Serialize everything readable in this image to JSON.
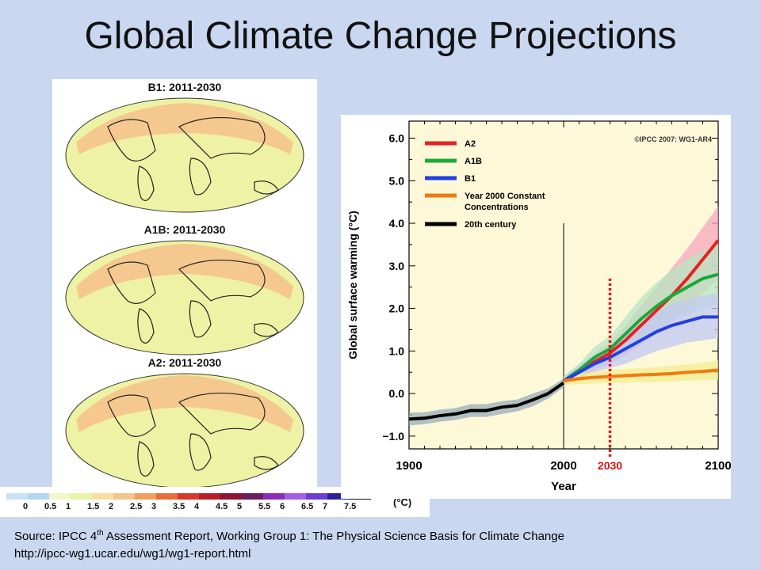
{
  "slide": {
    "title": "Global Climate Change Projections",
    "source_prefix": "Source: IPCC 4",
    "source_sup": "th",
    "source_rest": " Assessment Report, Working Group 1: The Physical Science Basis for Climate Change",
    "source_url": "http://ipcc-wg1.ucar.edu/wg1/wg1-report.html"
  },
  "maps": [
    {
      "label": "B1: 2011-2030"
    },
    {
      "label": "A1B: 2011-2030"
    },
    {
      "label": "A2: 2011-2030"
    }
  ],
  "colorbar": {
    "ticks": [
      "0",
      "0.5",
      "1",
      "1.5",
      "2",
      "2.5",
      "3",
      "3.5",
      "4",
      "4.5",
      "5",
      "5.5",
      "6",
      "6.5",
      "7",
      "7.5"
    ],
    "unit": "(°C)",
    "colors": [
      "#c9e2f5",
      "#b2d6f0",
      "#f3f6c8",
      "#e8f3a8",
      "#f6dfa0",
      "#f5c48a",
      "#f09e62",
      "#e56e3a",
      "#d8392a",
      "#b81e2a",
      "#8f1530",
      "#6a1e5e",
      "#8b2cb8",
      "#a25fe0",
      "#6a3fd6",
      "#2a20a0",
      "#101010"
    ]
  },
  "chart_data": {
    "type": "line",
    "xlabel": "Year",
    "ylabel": "Global surface warming (°C)",
    "xlim": [
      1900,
      2100
    ],
    "ylim": [
      -1.3,
      6.4
    ],
    "xticks": [
      "1900",
      "2000",
      "2100"
    ],
    "yticks": [
      "6.0",
      "5.0",
      "4.0",
      "3.0",
      "2.0",
      "1.0",
      "0.0",
      "−1.0"
    ],
    "credit": "©IPCC 2007: WG1-AR4",
    "legend_position": "top-left",
    "vertical_marker": {
      "x": 2000
    },
    "highlight": {
      "x": 2030,
      "label": "2030",
      "color": "#e01010"
    },
    "series": [
      {
        "name": "A2",
        "color": "#e82020",
        "band": "#f6a7bd",
        "x": [
          2000,
          2010,
          2020,
          2030,
          2040,
          2050,
          2060,
          2070,
          2080,
          2090,
          2100
        ],
        "y": [
          0.3,
          0.5,
          0.75,
          0.95,
          1.25,
          1.6,
          1.95,
          2.3,
          2.7,
          3.15,
          3.6
        ],
        "band_low": [
          0.2,
          0.35,
          0.55,
          0.7,
          0.9,
          1.15,
          1.4,
          1.7,
          2.0,
          2.35,
          2.7
        ],
        "band_high": [
          0.4,
          0.65,
          0.95,
          1.2,
          1.6,
          2.05,
          2.5,
          2.95,
          3.4,
          3.9,
          4.4
        ]
      },
      {
        "name": "A1B",
        "color": "#1aa83a",
        "band": "#b5e6c0",
        "x": [
          2000,
          2010,
          2020,
          2030,
          2040,
          2050,
          2060,
          2070,
          2080,
          2090,
          2100
        ],
        "y": [
          0.3,
          0.55,
          0.85,
          1.05,
          1.4,
          1.75,
          2.05,
          2.3,
          2.5,
          2.7,
          2.8
        ],
        "band_low": [
          0.2,
          0.4,
          0.6,
          0.75,
          1.0,
          1.25,
          1.5,
          1.7,
          1.85,
          2.0,
          2.1
        ],
        "band_high": [
          0.4,
          0.7,
          1.1,
          1.35,
          1.8,
          2.25,
          2.6,
          2.9,
          3.15,
          3.35,
          3.5
        ]
      },
      {
        "name": "B1",
        "color": "#2040e0",
        "band": "#c2c8f4",
        "x": [
          2000,
          2010,
          2020,
          2030,
          2040,
          2050,
          2060,
          2070,
          2080,
          2090,
          2100
        ],
        "y": [
          0.3,
          0.5,
          0.7,
          0.85,
          1.05,
          1.25,
          1.45,
          1.6,
          1.7,
          1.8,
          1.8
        ],
        "band_low": [
          0.2,
          0.35,
          0.5,
          0.6,
          0.7,
          0.85,
          1.0,
          1.1,
          1.2,
          1.25,
          1.3
        ],
        "band_high": [
          0.4,
          0.65,
          0.9,
          1.1,
          1.4,
          1.65,
          1.9,
          2.1,
          2.2,
          2.3,
          2.35
        ]
      },
      {
        "name": "Year 2000 Constant Concentrations",
        "color": "#f07a10",
        "band": "#f4ec90",
        "x": [
          2000,
          2010,
          2020,
          2030,
          2040,
          2050,
          2060,
          2070,
          2080,
          2090,
          2100
        ],
        "y": [
          0.3,
          0.35,
          0.38,
          0.4,
          0.42,
          0.44,
          0.45,
          0.47,
          0.5,
          0.52,
          0.55
        ],
        "band_low": [
          0.2,
          0.22,
          0.24,
          0.25,
          0.26,
          0.27,
          0.27,
          0.28,
          0.3,
          0.31,
          0.32
        ],
        "band_high": [
          0.4,
          0.48,
          0.52,
          0.55,
          0.58,
          0.6,
          0.62,
          0.65,
          0.68,
          0.72,
          0.78
        ]
      },
      {
        "name": "20th century",
        "color": "#000000",
        "band": "#9aaebb",
        "x": [
          1900,
          1910,
          1920,
          1930,
          1940,
          1950,
          1960,
          1970,
          1980,
          1990,
          2000
        ],
        "y": [
          -0.6,
          -0.58,
          -0.52,
          -0.48,
          -0.4,
          -0.4,
          -0.32,
          -0.28,
          -0.15,
          0.0,
          0.25
        ],
        "band_low": [
          -0.75,
          -0.72,
          -0.66,
          -0.62,
          -0.55,
          -0.55,
          -0.48,
          -0.42,
          -0.3,
          -0.12,
          0.15
        ],
        "band_high": [
          -0.45,
          -0.44,
          -0.38,
          -0.34,
          -0.25,
          -0.25,
          -0.18,
          -0.14,
          0.0,
          0.12,
          0.35
        ]
      }
    ]
  }
}
